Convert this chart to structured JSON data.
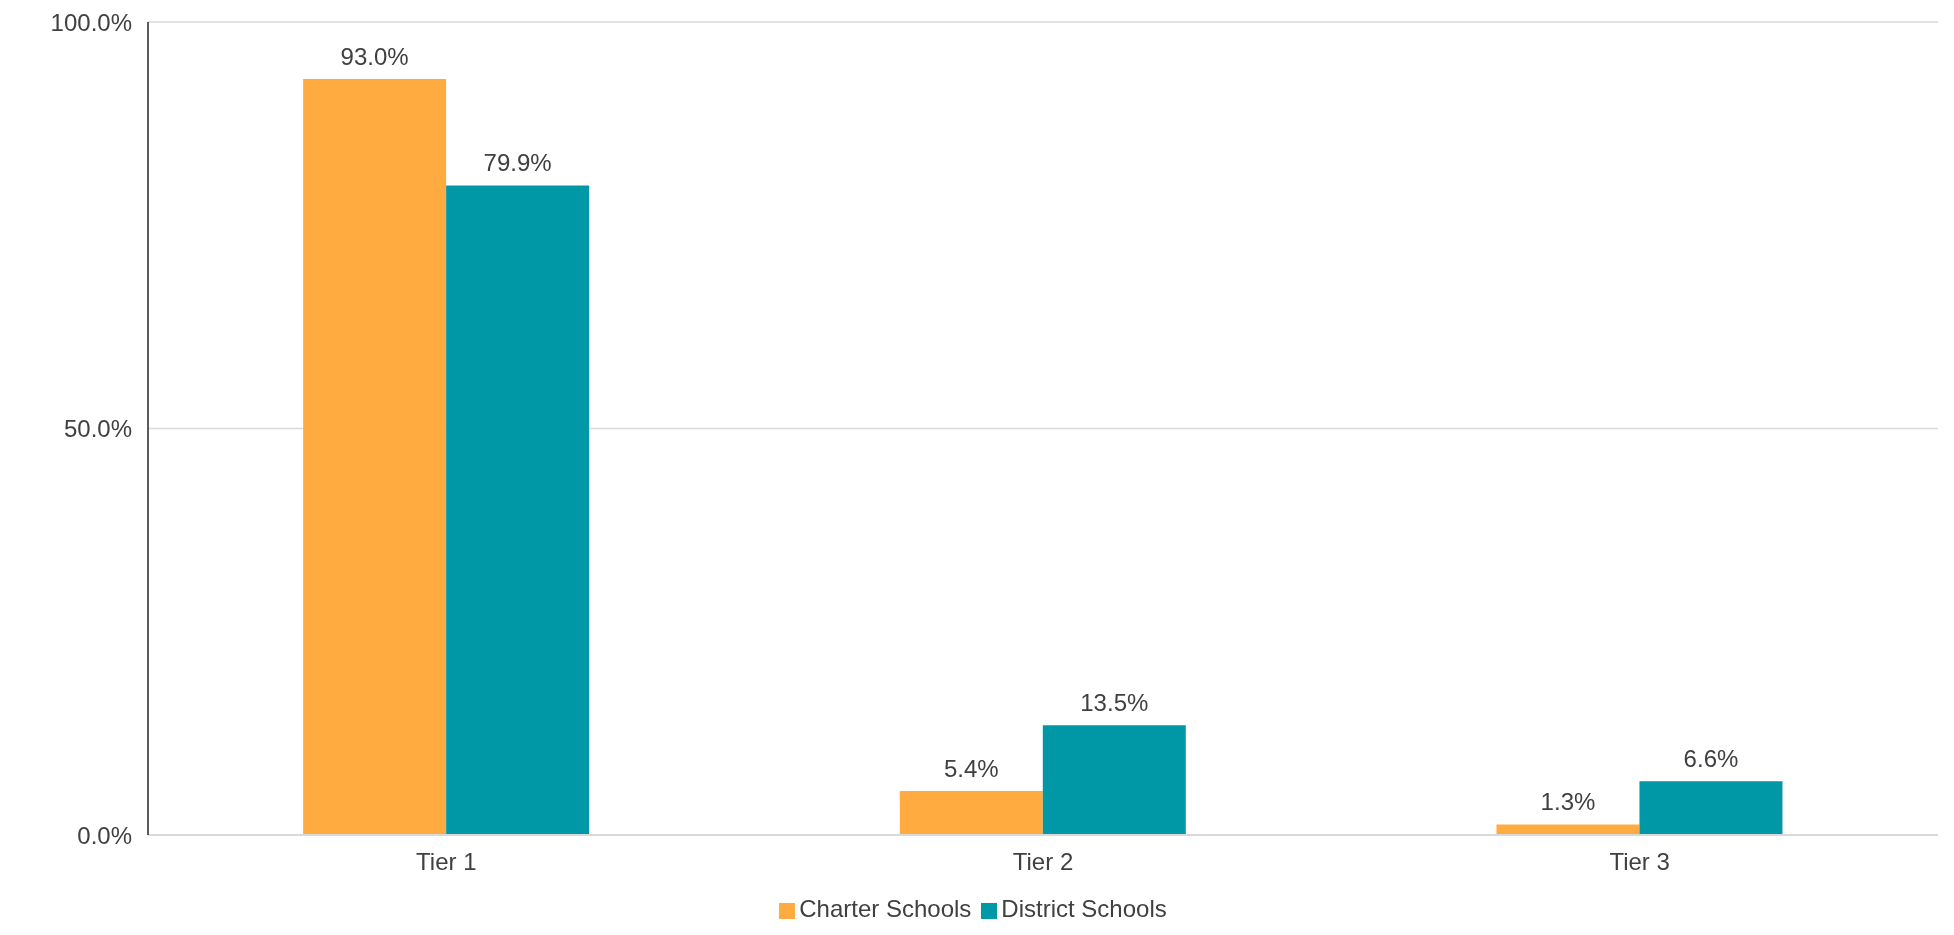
{
  "chart_data": {
    "type": "bar",
    "categories": [
      "Tier 1",
      "Tier 2",
      "Tier 3"
    ],
    "series": [
      {
        "name": "Charter Schools",
        "color": "#ffab40",
        "values": [
          93.0,
          5.4,
          1.3
        ],
        "value_labels": [
          "93.0%",
          "5.4%",
          "1.3%"
        ]
      },
      {
        "name": "District Schools",
        "color": "#0097a7",
        "values": [
          79.9,
          13.5,
          6.6
        ],
        "value_labels": [
          "79.9%",
          "13.5%",
          "6.6%"
        ]
      }
    ],
    "ylim": [
      0,
      100
    ],
    "yticks": [
      {
        "value": 0,
        "label": "0.0%"
      },
      {
        "value": 50,
        "label": "50.0%"
      },
      {
        "value": 100,
        "label": "100.0%"
      }
    ],
    "grid": "y",
    "legend": "bottom"
  }
}
